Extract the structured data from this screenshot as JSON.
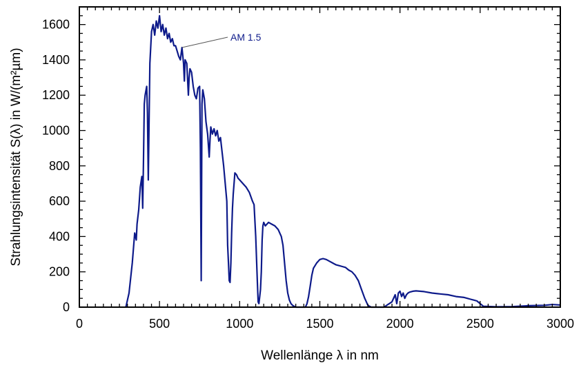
{
  "chart_data": {
    "type": "line",
    "title": "",
    "xlabel": "Wellenlänge λ in nm",
    "ylabel": "Strahlungsintensität S(λ) in W/(m²µm)",
    "xlim": [
      0,
      3000
    ],
    "ylim": [
      0,
      1700
    ],
    "x_ticks": [
      "0",
      "500",
      "1000",
      "1500",
      "2000",
      "2500",
      "3000"
    ],
    "y_ticks": [
      "0",
      "200",
      "400",
      "600",
      "800",
      "1000",
      "1200",
      "1400",
      "1600"
    ],
    "grid": false,
    "legend": "none",
    "annotation": {
      "text": "AM 1.5",
      "point": [
        640,
        1470
      ]
    },
    "series": [
      {
        "color": "#0d1a8a",
        "x": [
          290,
          310,
          330,
          345,
          355,
          360,
          370,
          380,
          390,
          395,
          400,
          405,
          410,
          420,
          425,
          430,
          440,
          450,
          460,
          470,
          480,
          490,
          500,
          510,
          520,
          530,
          540,
          550,
          560,
          570,
          580,
          590,
          600,
          610,
          620,
          630,
          640,
          650,
          655,
          660,
          670,
          680,
          685,
          690,
          700,
          710,
          720,
          730,
          740,
          750,
          755,
          760,
          765,
          770,
          780,
          790,
          800,
          810,
          815,
          820,
          830,
          840,
          850,
          860,
          870,
          880,
          890,
          900,
          910,
          920,
          925,
          930,
          935,
          940,
          945,
          950,
          955,
          960,
          965,
          970,
          980,
          990,
          1000,
          1020,
          1040,
          1060,
          1080,
          1090,
          1100,
          1110,
          1115,
          1120,
          1125,
          1130,
          1135,
          1140,
          1145,
          1150,
          1160,
          1170,
          1180,
          1200,
          1220,
          1240,
          1260,
          1270,
          1280,
          1290,
          1300,
          1310,
          1320,
          1330,
          1340,
          1350,
          1360,
          1380,
          1400,
          1410,
          1420,
          1430,
          1440,
          1450,
          1460,
          1480,
          1500,
          1520,
          1540,
          1560,
          1580,
          1600,
          1620,
          1640,
          1660,
          1680,
          1700,
          1720,
          1740,
          1760,
          1780,
          1800,
          1820,
          1840,
          1900,
          1950,
          1970,
          1980,
          1990,
          2000,
          2010,
          2020,
          2030,
          2040,
          2050,
          2060,
          2080,
          2100,
          2150,
          2200,
          2250,
          2300,
          2350,
          2400,
          2420,
          2440,
          2460,
          2480,
          2500,
          2520,
          2600,
          2700,
          2800,
          2900,
          2950,
          3000
        ],
        "values": [
          0,
          80,
          250,
          420,
          380,
          470,
          550,
          680,
          740,
          560,
          820,
          1150,
          1200,
          1250,
          1100,
          720,
          1380,
          1560,
          1600,
          1540,
          1620,
          1580,
          1650,
          1560,
          1600,
          1540,
          1580,
          1520,
          1550,
          1500,
          1520,
          1480,
          1480,
          1450,
          1420,
          1400,
          1470,
          1380,
          1280,
          1400,
          1380,
          1200,
          1300,
          1350,
          1330,
          1250,
          1200,
          1180,
          1240,
          1250,
          900,
          150,
          1150,
          1230,
          1180,
          1050,
          980,
          850,
          950,
          1020,
          980,
          1010,
          970,
          1000,
          940,
          960,
          880,
          800,
          700,
          600,
          350,
          250,
          150,
          140,
          250,
          420,
          560,
          640,
          700,
          760,
          750,
          730,
          720,
          700,
          680,
          650,
          600,
          580,
          400,
          150,
          30,
          20,
          60,
          100,
          200,
          380,
          460,
          480,
          460,
          470,
          480,
          470,
          460,
          440,
          400,
          350,
          250,
          150,
          80,
          40,
          20,
          10,
          5,
          0,
          0,
          0,
          0,
          0,
          20,
          60,
          120,
          180,
          220,
          250,
          270,
          275,
          270,
          260,
          250,
          240,
          235,
          230,
          225,
          210,
          200,
          180,
          150,
          100,
          50,
          10,
          0,
          0,
          0,
          30,
          70,
          20,
          80,
          90,
          60,
          80,
          50,
          70,
          80,
          85,
          90,
          92,
          88,
          80,
          75,
          70,
          60,
          55,
          50,
          45,
          40,
          35,
          20,
          5,
          2,
          3,
          8,
          10,
          15,
          12
        ]
      }
    ]
  }
}
